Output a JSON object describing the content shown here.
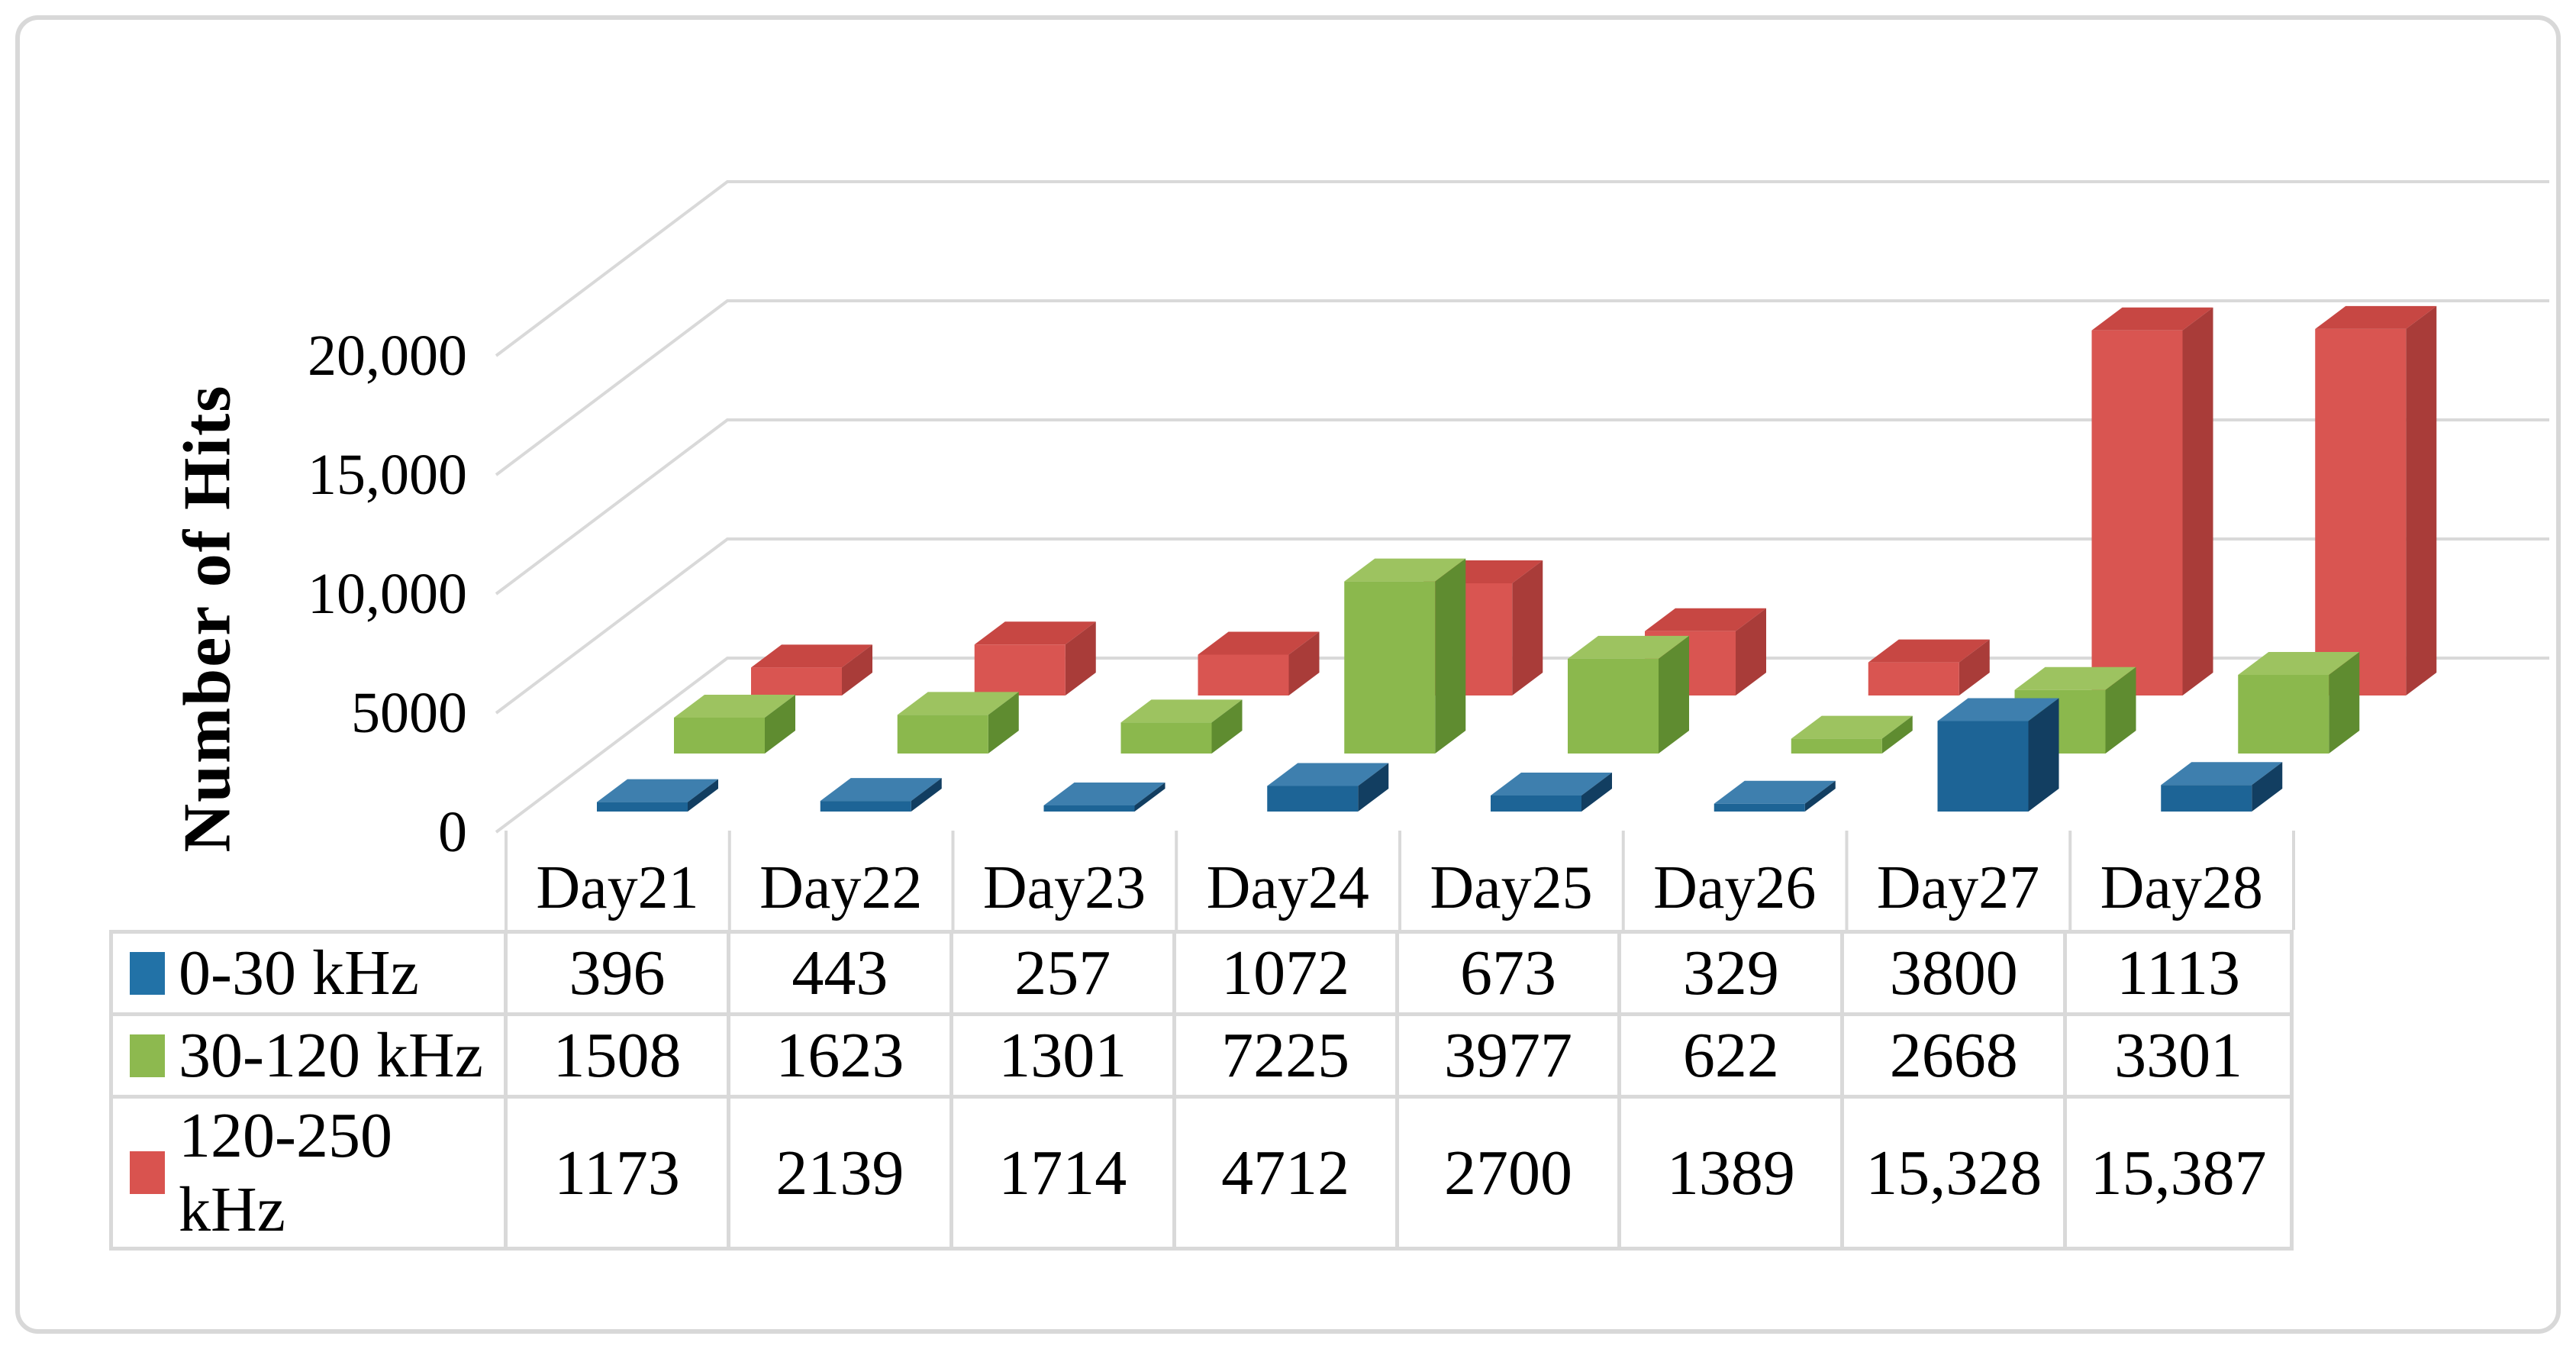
{
  "frame": {
    "border_color": "#d8d8d8"
  },
  "chart_data": {
    "type": "bar",
    "variant": "3d-clustered-depth",
    "title": "",
    "ylabel": "Number of Hits",
    "xlabel": "",
    "categories": [
      "Day21",
      "Day22",
      "Day23",
      "Day24",
      "Day25",
      "Day26",
      "Day27",
      "Day28"
    ],
    "series": [
      {
        "name": "0-30 kHz",
        "color": "#2272a7",
        "values": [
          396,
          443,
          257,
          1072,
          673,
          329,
          3800,
          1113
        ]
      },
      {
        "name": "30-120 kHz",
        "color": "#8db94f",
        "values": [
          1508,
          1623,
          1301,
          7225,
          3977,
          622,
          2668,
          3301
        ]
      },
      {
        "name": "120-250 kHz",
        "color": "#d9534f",
        "values": [
          1173,
          2139,
          1714,
          4712,
          2700,
          1389,
          15328,
          15387
        ]
      }
    ],
    "y_ticks": [
      {
        "value": 0,
        "label": "0"
      },
      {
        "value": 5000,
        "label": "5000"
      },
      {
        "value": 10000,
        "label": "10,000"
      },
      {
        "value": 15000,
        "label": "15,000"
      },
      {
        "value": 20000,
        "label": "20,000"
      }
    ],
    "ylim": [
      0,
      20000
    ],
    "grid": true,
    "grid_color": "#d9d9d9",
    "legend_position": "table-left"
  },
  "series_faces": [
    {
      "front": "#1d6496",
      "top": "#3e7fae",
      "side": "#123e61"
    },
    {
      "front": "#8bb84d",
      "top": "#9dc360",
      "side": "#5f8c30"
    },
    {
      "front": "#d95551",
      "top": "#c74743",
      "side": "#a93c39"
    }
  ],
  "table": {
    "header": [
      "Day21",
      "Day22",
      "Day23",
      "Day24",
      "Day25",
      "Day26",
      "Day27",
      "Day28"
    ],
    "rows": [
      {
        "label": "0-30 kHz",
        "swatch": "#2272a7",
        "cells": [
          "396",
          "443",
          "257",
          "1072",
          "673",
          "329",
          "3800",
          "1113"
        ]
      },
      {
        "label": "30-120 kHz",
        "swatch": "#8db94f",
        "cells": [
          "1508",
          "1623",
          "1301",
          "7225",
          "3977",
          "622",
          "2668",
          "3301"
        ]
      },
      {
        "label": "120-250 kHz",
        "swatch": "#d9534f",
        "cells": [
          "1173",
          "2139",
          "1714",
          "4712",
          "2700",
          "1389",
          "15,328",
          "15,387"
        ]
      }
    ]
  }
}
